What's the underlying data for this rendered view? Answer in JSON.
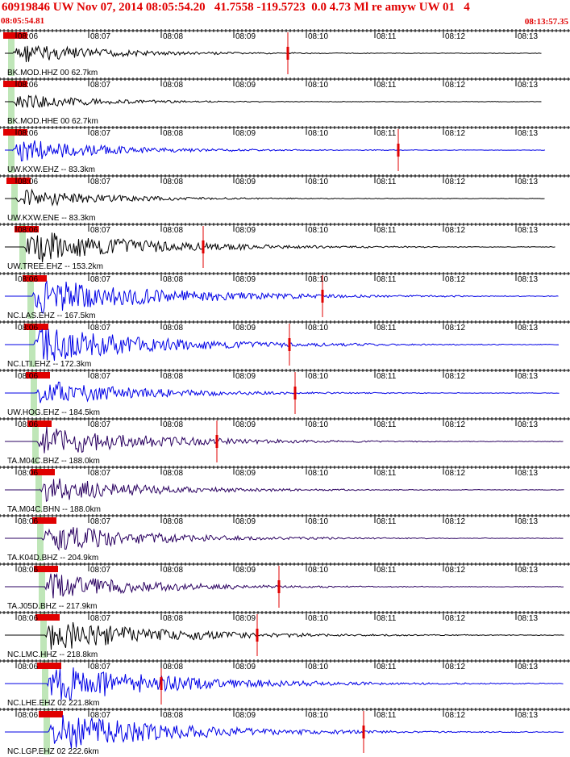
{
  "header": {
    "title": "60919846 UW Nov 07, 2014 08:05:54.20   41.7558 -119.5723  0.0 4.73 Ml re amyw UW 01   4",
    "start_time": "08:05:54.81",
    "end_time": "08:13:57.35"
  },
  "colors": {
    "title": "#e00000",
    "blue": "#0000e6",
    "black": "#000000",
    "purple": "#2a0060",
    "pick": "#e00000",
    "highlight": "#bfe6b8"
  },
  "minute_ticks": [
    "08:06",
    "08:07",
    "08:08",
    "08:09",
    "08:10",
    "08:11",
    "08:12",
    "08:13"
  ],
  "traces": [
    {
      "label": "BK.MOD.HHZ 00 62.7km",
      "color": "black",
      "amp": 0.55
    },
    {
      "label": "BK.MOD.HHE 00 62.7km",
      "color": "black",
      "amp": 0.4
    },
    {
      "label": "UW.KXW.EHZ -- 83.3km",
      "color": "blue",
      "amp": 0.6
    },
    {
      "label": "UW.KXW.ENE -- 83.3km",
      "color": "black",
      "amp": 0.5
    },
    {
      "label": "UW.TREE.EHZ -- 153.2km",
      "color": "black",
      "amp": 0.9
    },
    {
      "label": "NC.LAS.EHZ -- 167.5km",
      "color": "blue",
      "amp": 1.0
    },
    {
      "label": "NC.LTI.EHZ -- 172.3km",
      "color": "blue",
      "amp": 0.95
    },
    {
      "label": "UW.HOG.EHZ -- 184.5km",
      "color": "blue",
      "amp": 0.7
    },
    {
      "label": "TA.M04C.BHZ -- 188.0km",
      "color": "purple",
      "amp": 0.8
    },
    {
      "label": "TA.M04C.BHN -- 188.0km",
      "color": "purple",
      "amp": 0.7
    },
    {
      "label": "TA.K04D.BHZ -- 204.9km",
      "color": "purple",
      "amp": 0.75
    },
    {
      "label": "TA.J05D.BHZ -- 217.9km",
      "color": "purple",
      "amp": 0.7
    },
    {
      "label": "NC.LMC.HHZ -- 218.8km",
      "color": "black",
      "amp": 0.85
    },
    {
      "label": "NC.LHE.EHZ 02 221.8km",
      "color": "blue",
      "amp": 1.0
    },
    {
      "label": "NC.LGP.EHZ 02 222.6km",
      "color": "blue",
      "amp": 1.0
    }
  ]
}
